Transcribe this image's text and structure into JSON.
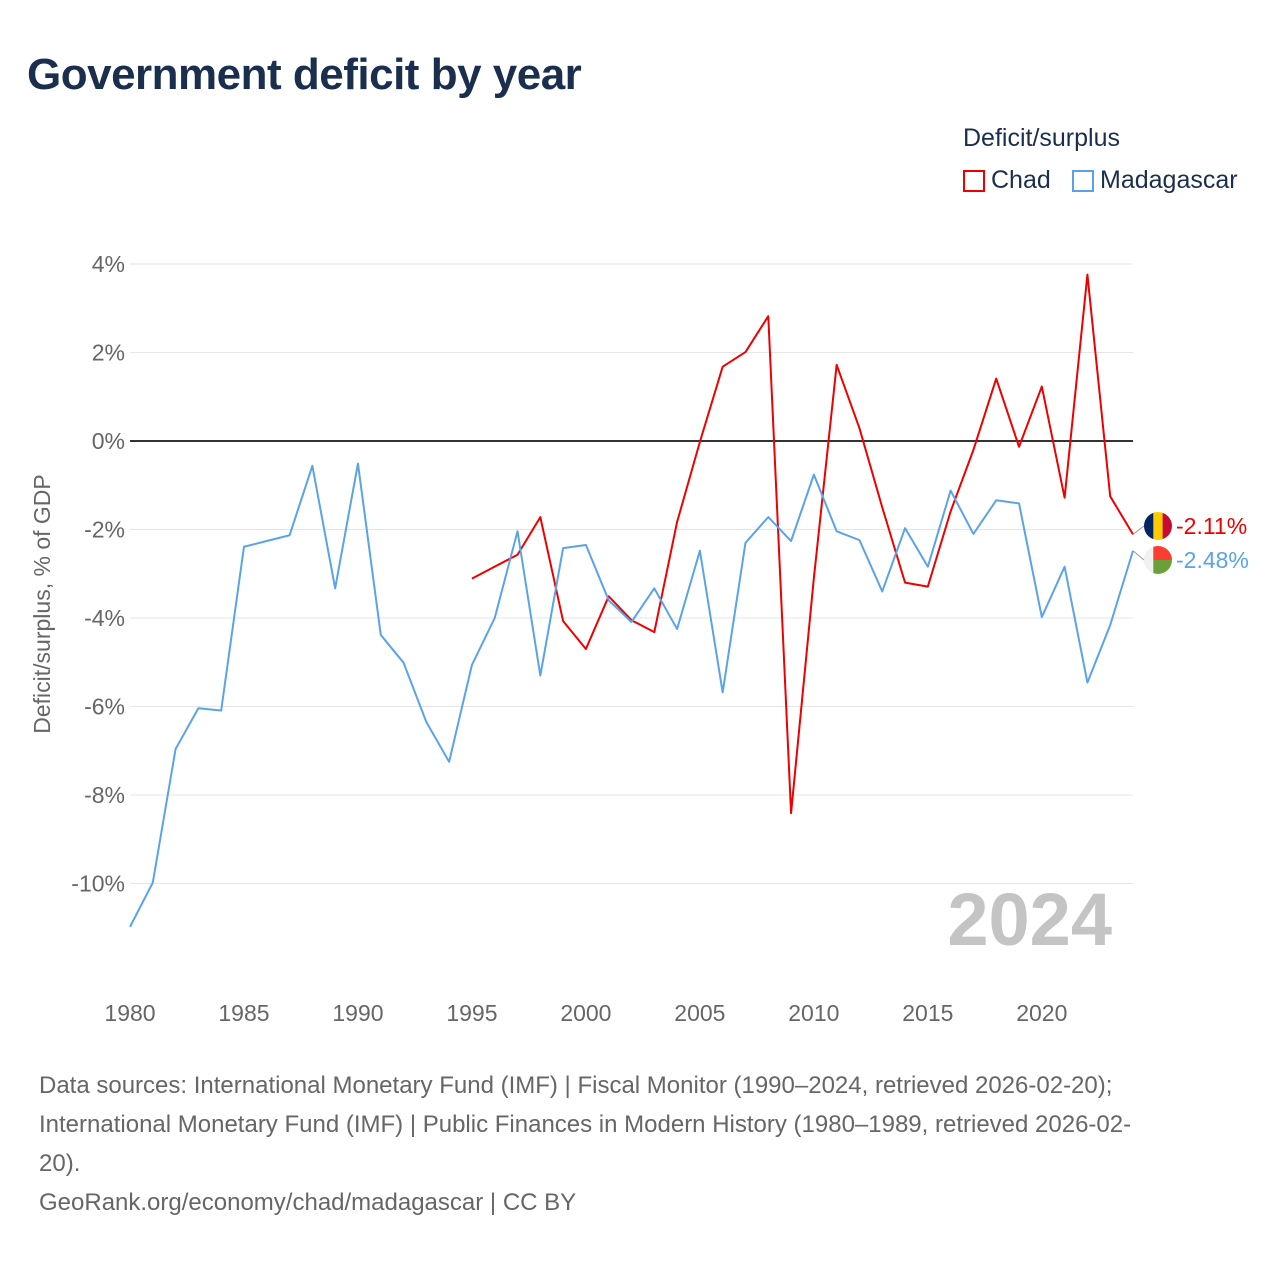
{
  "title": "Government deficit by year",
  "legend": {
    "title": "Deficit/surplus",
    "items": [
      {
        "name": "Chad",
        "color": "#ee0000"
      },
      {
        "name": "Madagascar",
        "color": "#5ba3e8"
      }
    ]
  },
  "watermark_year": "2024",
  "end_labels": {
    "chad": "-2.11%",
    "madagascar": "-2.48%"
  },
  "source_lines": [
    "Data sources: International Monetary Fund (IMF) | Fiscal Monitor (1990–2024, retrieved 2026-02-20);",
    "International Monetary Fund (IMF) | Public Finances in Modern History (1980–1989, retrieved 2026-02-",
    "20).",
    "GeoRank.org/economy/chad/madagascar | CC BY"
  ],
  "chart_data": {
    "type": "line",
    "title": "Government deficit by year",
    "ylabel": "Deficit/surplus, % of GDP",
    "xlabel": "",
    "xlim": [
      1980,
      2024
    ],
    "ylim": [
      -11,
      4
    ],
    "x_ticks": [
      1980,
      1985,
      1990,
      1995,
      2000,
      2005,
      2010,
      2015,
      2020
    ],
    "x_tick_labels": [
      "1980",
      "1985",
      "1990",
      "1995",
      "2000",
      "2005",
      "2010",
      "2015",
      "2020"
    ],
    "y_ticks": [
      4,
      2,
      0,
      -2,
      -4,
      -6,
      -8,
      -10
    ],
    "y_tick_labels": [
      "4%",
      "2%",
      "0%",
      "-2%",
      "-4%",
      "-6%",
      "-8%",
      "-10%"
    ],
    "grid": true,
    "legend_position": "top-right",
    "series": [
      {
        "name": "Chad",
        "color": "#ee0000",
        "x": [
          1995,
          1996,
          1997,
          1998,
          1999,
          2000,
          2001,
          2002,
          2003,
          2004,
          2005,
          2006,
          2007,
          2008,
          2009,
          2010,
          2011,
          2012,
          2013,
          2014,
          2015,
          2016,
          2017,
          2018,
          2019,
          2020,
          2021,
          2022,
          2023,
          2024
        ],
        "values": [
          -3.11,
          -2.84,
          -2.57,
          -1.72,
          -4.07,
          -4.7,
          -3.51,
          -4.05,
          -4.32,
          -1.83,
          -0.02,
          1.68,
          2.01,
          2.82,
          -8.41,
          -3.1,
          1.72,
          0.29,
          -1.5,
          -3.2,
          -3.29,
          -1.59,
          -0.2,
          1.41,
          -0.13,
          1.23,
          -1.28,
          3.76,
          -1.25,
          -2.11
        ]
      },
      {
        "name": "Madagascar",
        "color": "#5ba3e8",
        "x": [
          1980,
          1981,
          1982,
          1983,
          1984,
          1985,
          1986,
          1987,
          1988,
          1989,
          1990,
          1991,
          1992,
          1993,
          1994,
          1995,
          1996,
          1997,
          1998,
          1999,
          2000,
          2001,
          2002,
          2003,
          2004,
          2005,
          2006,
          2007,
          2008,
          2009,
          2010,
          2011,
          2012,
          2013,
          2014,
          2015,
          2016,
          2017,
          2018,
          2019,
          2020,
          2021,
          2022,
          2023,
          2024
        ],
        "values": [
          -10.98,
          -9.98,
          -6.96,
          -6.04,
          -6.09,
          -2.39,
          -2.26,
          -2.13,
          -0.56,
          -3.33,
          -0.51,
          -4.38,
          -5.01,
          -6.35,
          -7.25,
          -5.06,
          -4.0,
          -2.04,
          -5.3,
          -2.42,
          -2.35,
          -3.6,
          -4.09,
          -3.33,
          -4.25,
          -2.48,
          -5.68,
          -2.3,
          -1.72,
          -2.26,
          -0.76,
          -2.04,
          -2.24,
          -3.4,
          -1.97,
          -2.84,
          -1.12,
          -2.1,
          -1.34,
          -1.41,
          -3.98,
          -2.84,
          -5.46,
          -4.16,
          -2.48
        ]
      }
    ]
  }
}
